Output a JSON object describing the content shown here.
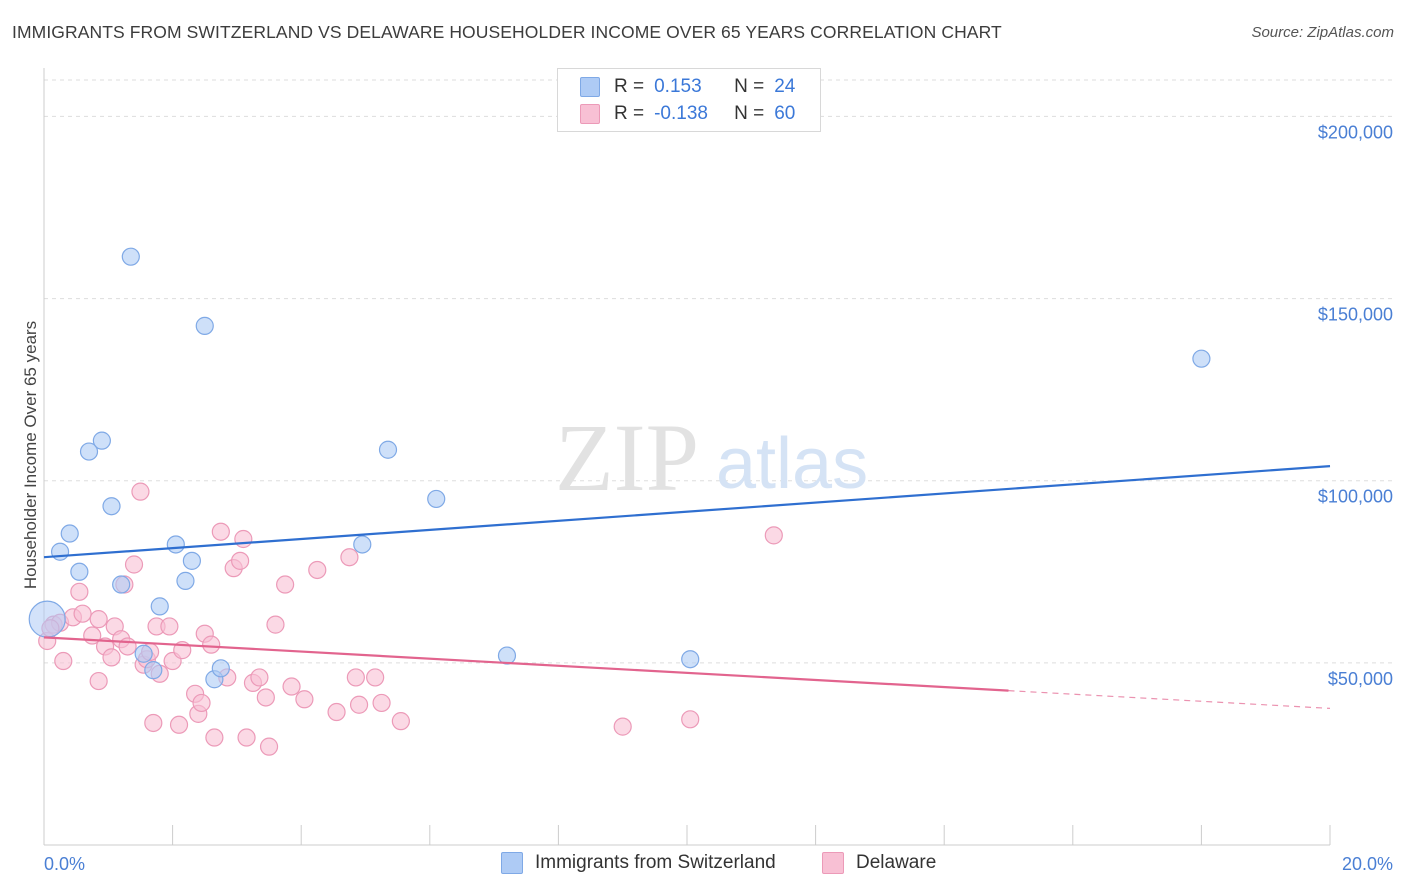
{
  "header": {
    "title": "IMMIGRANTS FROM SWITZERLAND VS DELAWARE HOUSEHOLDER INCOME OVER 65 YEARS CORRELATION CHART",
    "source": "Source: ZipAtlas.com"
  },
  "watermark": {
    "zip": "ZIP",
    "atlas": "atlas"
  },
  "legend": {
    "rows": [
      {
        "r_label": "R =",
        "r_value": "0.153",
        "n_label": "N =",
        "n_value": "24"
      },
      {
        "r_label": "R =",
        "r_value": "-0.138",
        "n_label": "N =",
        "n_value": "60"
      }
    ]
  },
  "bottom_legend": {
    "series1": "Immigrants from Switzerland",
    "series2": "Delaware"
  },
  "colors": {
    "blue_fill": "#aecbf5",
    "blue_stroke": "#7fa9e6",
    "blue_line": "#2f6fd0",
    "pink_fill": "#f8c0d4",
    "pink_stroke": "#ec9ab8",
    "pink_line": "#e2648e",
    "tick_text": "#4a7fd4",
    "grid": "#dddddd"
  },
  "chart_data": {
    "type": "scatter",
    "title": "IMMIGRANTS FROM SWITZERLAND VS DELAWARE HOUSEHOLDER INCOME OVER 65 YEARS CORRELATION CHART",
    "xlabel": "",
    "ylabel": "Householder Income Over 65 years",
    "xlim": [
      0,
      20
    ],
    "ylim": [
      0,
      210000
    ],
    "x_tick_labels": [
      "0.0%",
      "20.0%"
    ],
    "y_ticks": [
      50000,
      100000,
      150000,
      200000
    ],
    "y_tick_labels": [
      "$50,000",
      "$100,000",
      "$150,000",
      "$200,000"
    ],
    "grid": true,
    "legend_position": "top-center",
    "series": [
      {
        "name": "Immigrants from Switzerland",
        "color": "#aecbf5",
        "r": 0.153,
        "n": 24,
        "points": [
          [
            0.05,
            62000
          ],
          [
            0.25,
            80500
          ],
          [
            0.4,
            85500
          ],
          [
            0.55,
            75000
          ],
          [
            0.7,
            108000
          ],
          [
            0.9,
            111000
          ],
          [
            1.05,
            93000
          ],
          [
            1.2,
            71500
          ],
          [
            1.35,
            161500
          ],
          [
            1.55,
            52500
          ],
          [
            1.7,
            48000
          ],
          [
            1.8,
            65500
          ],
          [
            2.05,
            82500
          ],
          [
            2.2,
            72500
          ],
          [
            2.3,
            78000
          ],
          [
            2.5,
            142500
          ],
          [
            2.65,
            45500
          ],
          [
            2.75,
            48500
          ],
          [
            4.95,
            82500
          ],
          [
            5.35,
            108500
          ],
          [
            6.1,
            95000
          ],
          [
            7.2,
            52000
          ],
          [
            10.05,
            51000
          ],
          [
            18.0,
            133500
          ]
        ],
        "trend": {
          "x": [
            0,
            20
          ],
          "y": [
            79000,
            104000
          ],
          "dashed_from_x": null
        }
      },
      {
        "name": "Delaware",
        "color": "#f8c0d4",
        "r": -0.138,
        "n": 60,
        "points": [
          [
            0.05,
            56000
          ],
          [
            0.15,
            60500
          ],
          [
            0.25,
            61000
          ],
          [
            0.3,
            50500
          ],
          [
            0.45,
            62500
          ],
          [
            0.6,
            63500
          ],
          [
            0.55,
            69500
          ],
          [
            0.75,
            57500
          ],
          [
            0.85,
            62000
          ],
          [
            0.95,
            54500
          ],
          [
            1.05,
            51500
          ],
          [
            0.85,
            45000
          ],
          [
            1.1,
            60000
          ],
          [
            1.2,
            56500
          ],
          [
            1.25,
            71500
          ],
          [
            1.3,
            54500
          ],
          [
            1.4,
            77000
          ],
          [
            1.5,
            97000
          ],
          [
            1.55,
            49500
          ],
          [
            1.6,
            51000
          ],
          [
            1.65,
            53000
          ],
          [
            1.75,
            60000
          ],
          [
            1.8,
            47000
          ],
          [
            1.7,
            33500
          ],
          [
            1.95,
            60000
          ],
          [
            2.0,
            50500
          ],
          [
            2.1,
            33000
          ],
          [
            2.15,
            53500
          ],
          [
            2.35,
            41500
          ],
          [
            2.4,
            36000
          ],
          [
            2.45,
            39000
          ],
          [
            2.5,
            58000
          ],
          [
            2.6,
            55000
          ],
          [
            2.65,
            29500
          ],
          [
            2.75,
            86000
          ],
          [
            2.85,
            46000
          ],
          [
            2.95,
            76000
          ],
          [
            3.05,
            78000
          ],
          [
            3.1,
            84000
          ],
          [
            3.15,
            29500
          ],
          [
            3.25,
            44500
          ],
          [
            3.35,
            46000
          ],
          [
            3.45,
            40500
          ],
          [
            3.5,
            27000
          ],
          [
            3.6,
            60500
          ],
          [
            3.75,
            71500
          ],
          [
            3.85,
            43500
          ],
          [
            4.05,
            40000
          ],
          [
            4.25,
            75500
          ],
          [
            4.55,
            36500
          ],
          [
            4.75,
            79000
          ],
          [
            4.85,
            46000
          ],
          [
            4.9,
            38500
          ],
          [
            5.15,
            46000
          ],
          [
            5.25,
            39000
          ],
          [
            5.55,
            34000
          ],
          [
            9.0,
            32500
          ],
          [
            10.05,
            34500
          ],
          [
            11.35,
            85000
          ],
          [
            0.1,
            59500
          ]
        ],
        "trend": {
          "x": [
            0,
            20
          ],
          "y": [
            57000,
            37500
          ],
          "dashed_from_x": 15
        }
      }
    ]
  }
}
